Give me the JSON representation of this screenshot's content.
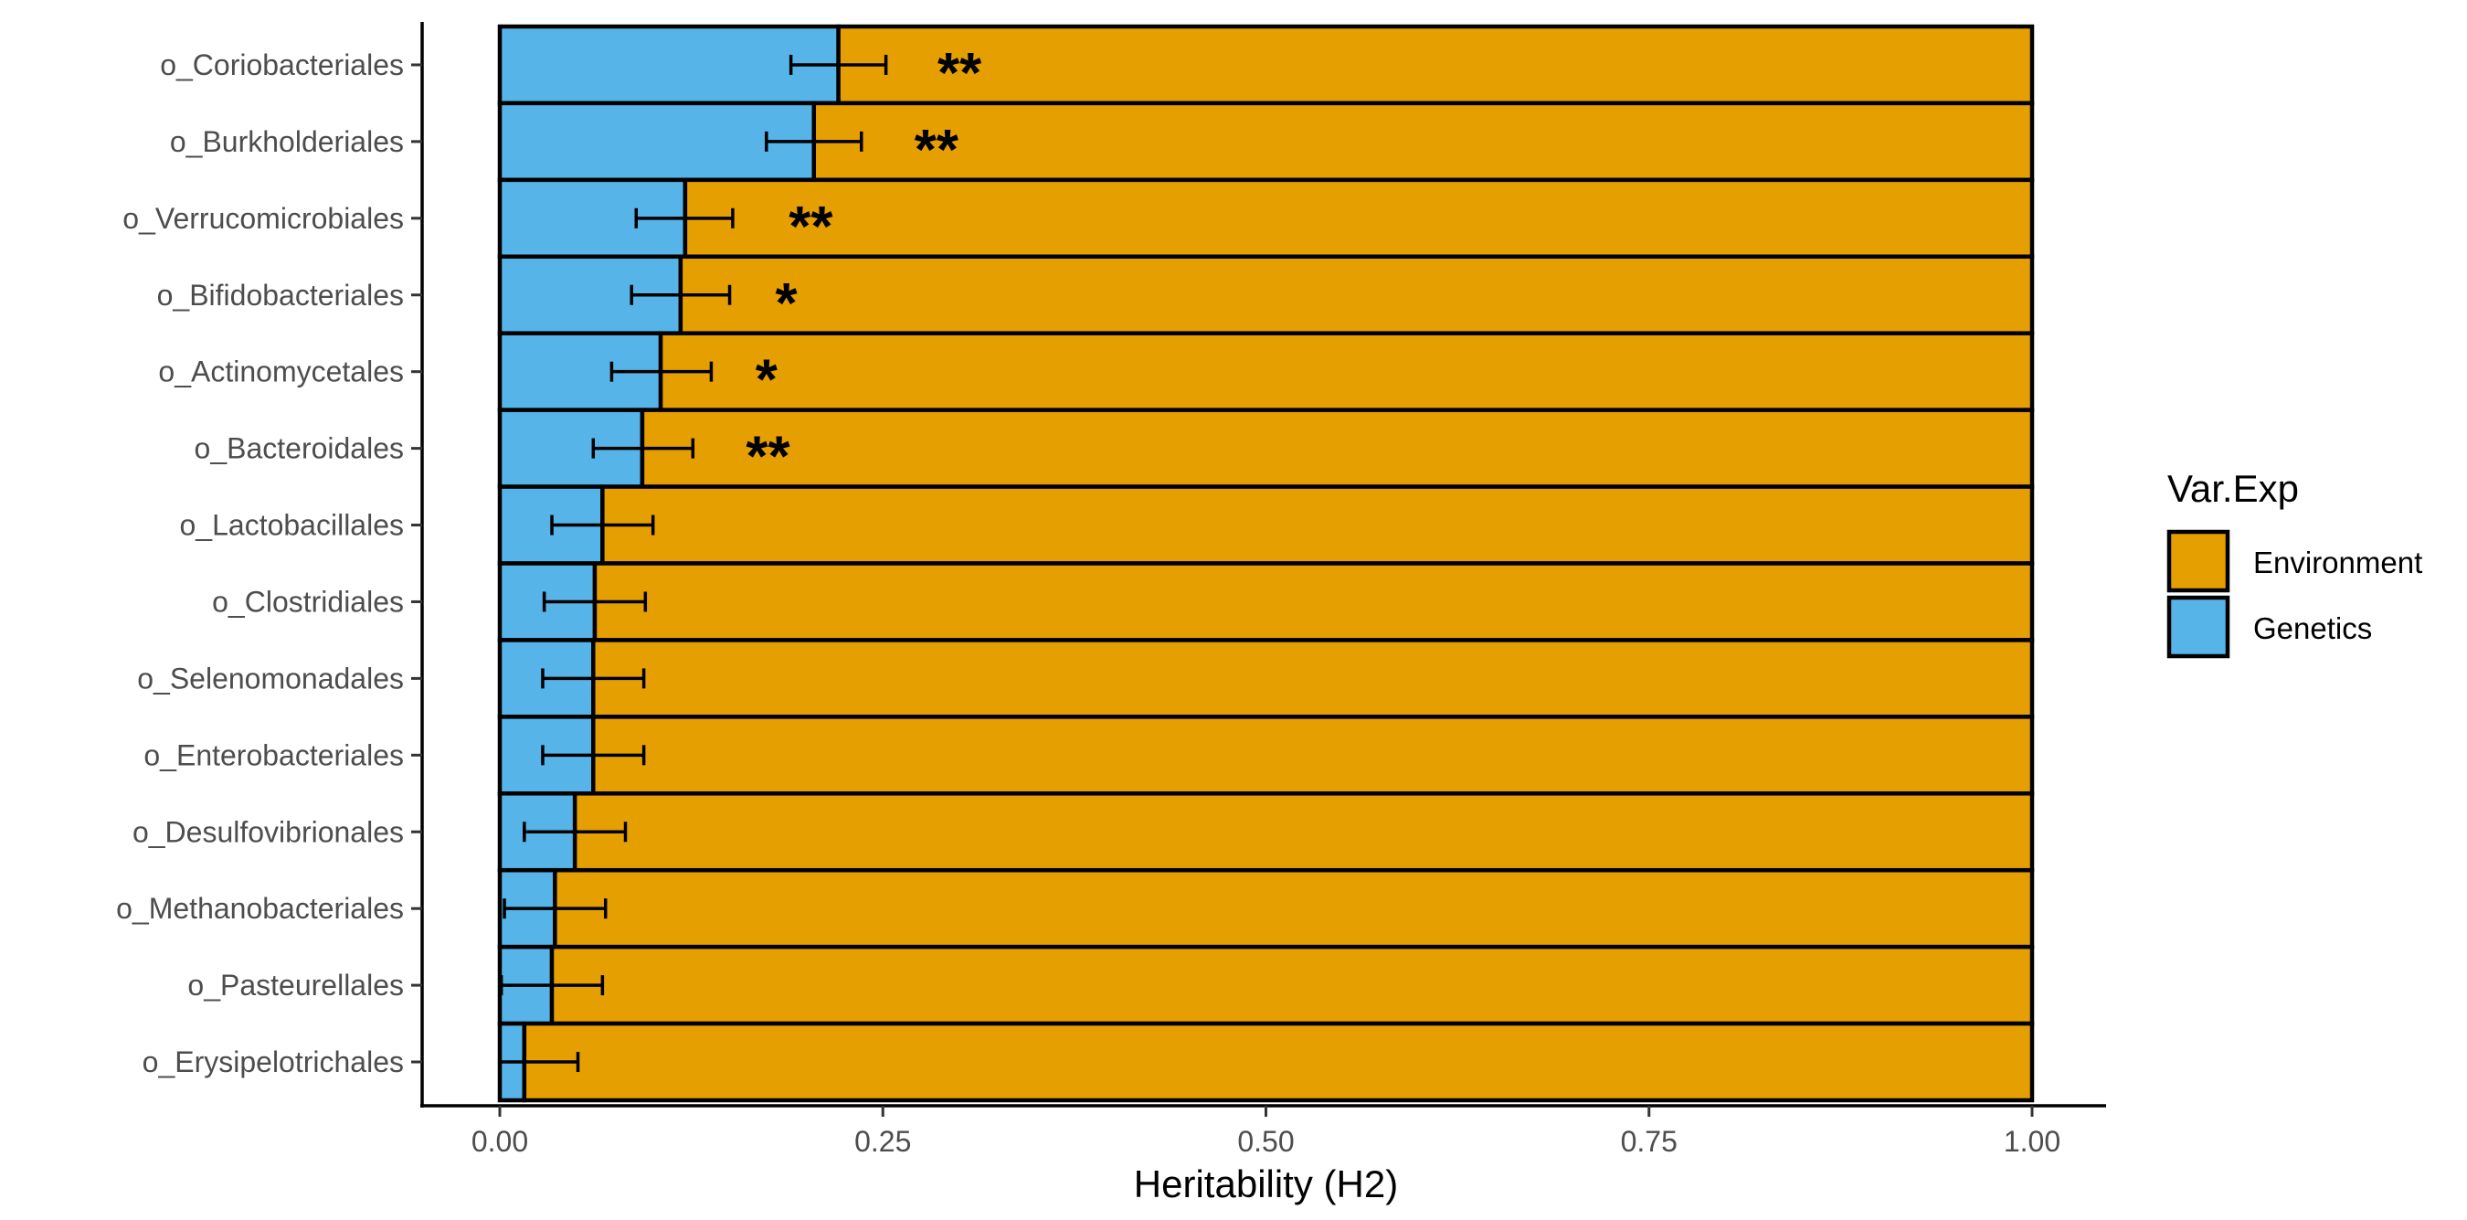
{
  "chart_data": {
    "type": "bar",
    "orientation": "horizontal",
    "stacked": true,
    "title": "",
    "xlabel": "Heritability (H2)",
    "ylabel": "",
    "xlim": [
      0,
      1
    ],
    "x_ticks": [
      0,
      0.25,
      0.5,
      0.75,
      1
    ],
    "x_tick_labels": [
      "0.00",
      "0.25",
      "0.50",
      "0.75",
      "1.00"
    ],
    "grid": false,
    "legend": {
      "title": "Var.Exp",
      "placement": "right",
      "entries": [
        {
          "label": "Environment",
          "color": "#E69F00"
        },
        {
          "label": "Genetics",
          "color": "#56B4E9"
        }
      ]
    },
    "categories": [
      "o_Coriobacteriales",
      "o_Burkholderiales",
      "o_Verrucomicrobiales",
      "o_Bifidobacteriales",
      "o_Actinomycetales",
      "o_Bacteroidales",
      "o_Lactobacillales",
      "o_Clostridiales",
      "o_Selenomonadales",
      "o_Enterobacteriales",
      "o_Desulfovibrionales",
      "o_Methanobacteriales",
      "o_Pasteurellales",
      "o_Erysipelotrichales"
    ],
    "series": [
      {
        "name": "Genetics",
        "color": "#56B4E9",
        "values": [
          0.221,
          0.205,
          0.121,
          0.118,
          0.105,
          0.093,
          0.067,
          0.062,
          0.061,
          0.061,
          0.049,
          0.036,
          0.034,
          0.016
        ]
      },
      {
        "name": "Environment",
        "color": "#E69F00",
        "values": [
          0.779,
          0.795,
          0.879,
          0.882,
          0.895,
          0.907,
          0.933,
          0.938,
          0.939,
          0.939,
          0.951,
          0.964,
          0.966,
          0.984
        ]
      }
    ],
    "error_bars": {
      "series": "Genetics",
      "lower": [
        0.19,
        0.174,
        0.089,
        0.086,
        0.073,
        0.061,
        0.034,
        0.029,
        0.028,
        0.028,
        0.016,
        0.003,
        0.001,
        0.0
      ],
      "upper": [
        0.252,
        0.236,
        0.152,
        0.15,
        0.138,
        0.126,
        0.1,
        0.095,
        0.094,
        0.094,
        0.082,
        0.069,
        0.067,
        0.051
      ]
    },
    "annotations": [
      {
        "category": "o_Coriobacteriales",
        "text": "**",
        "x": 0.3
      },
      {
        "category": "o_Burkholderiales",
        "text": "**",
        "x": 0.285
      },
      {
        "category": "o_Verrucomicrobiales",
        "text": "**",
        "x": 0.203
      },
      {
        "category": "o_Bifidobacteriales",
        "text": "*",
        "x": 0.187
      },
      {
        "category": "o_Actinomycetales",
        "text": "*",
        "x": 0.174
      },
      {
        "category": "o_Bacteroidales",
        "text": "**",
        "x": 0.175
      }
    ]
  }
}
